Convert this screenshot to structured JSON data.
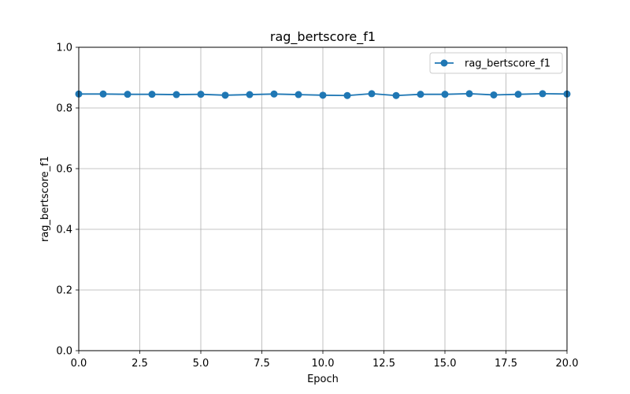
{
  "chart_data": {
    "type": "line",
    "title": "rag_bertscore_f1",
    "xlabel": "Epoch",
    "ylabel": "rag_bertscore_f1",
    "xlim": [
      0,
      20
    ],
    "ylim": [
      0,
      1
    ],
    "xticks": [
      0,
      2.5,
      5,
      7.5,
      10,
      12.5,
      15,
      17.5,
      20
    ],
    "xtick_labels": [
      "0.0",
      "2.5",
      "5.0",
      "7.5",
      "10.0",
      "12.5",
      "15.0",
      "17.5",
      "20.0"
    ],
    "yticks": [
      0,
      0.2,
      0.4,
      0.6,
      0.8,
      1.0
    ],
    "ytick_labels": [
      "0.0",
      "0.2",
      "0.4",
      "0.6",
      "0.8",
      "1.0"
    ],
    "grid": true,
    "legend_position": "top-right",
    "series": [
      {
        "name": "rag_bertscore_f1",
        "color": "#1f77b4",
        "marker": "circle",
        "x": [
          0,
          1,
          2,
          3,
          4,
          5,
          6,
          7,
          8,
          9,
          10,
          11,
          12,
          13,
          14,
          15,
          16,
          17,
          18,
          19,
          20
        ],
        "y": [
          0.846,
          0.846,
          0.845,
          0.845,
          0.844,
          0.845,
          0.842,
          0.844,
          0.846,
          0.844,
          0.842,
          0.841,
          0.847,
          0.841,
          0.845,
          0.845,
          0.847,
          0.843,
          0.845,
          0.847,
          0.846
        ]
      }
    ]
  }
}
